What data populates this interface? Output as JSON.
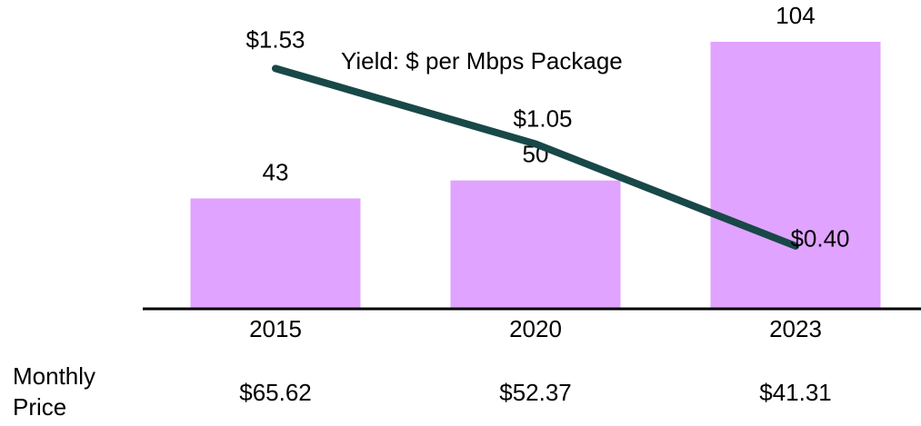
{
  "chart_data": {
    "type": "bar",
    "categories": [
      "2015",
      "2020",
      "2023"
    ],
    "values": [
      43,
      50,
      104
    ],
    "color": "#e0a3ff",
    "ylim": [
      0,
      104
    ],
    "line": {
      "name": "Yield: $ per Mbps Package",
      "color": "#184848",
      "values": [
        1.53,
        1.05,
        0.4
      ],
      "value_labels": [
        "$1.53",
        "$1.05",
        "$0.40"
      ],
      "axis": "y2"
    },
    "y2lim": [
      0,
      1.7
    ],
    "table": {
      "label_lines": [
        "Monthly",
        "Price"
      ],
      "values": [
        "$65.62",
        "$52.37",
        "$41.31"
      ]
    }
  }
}
